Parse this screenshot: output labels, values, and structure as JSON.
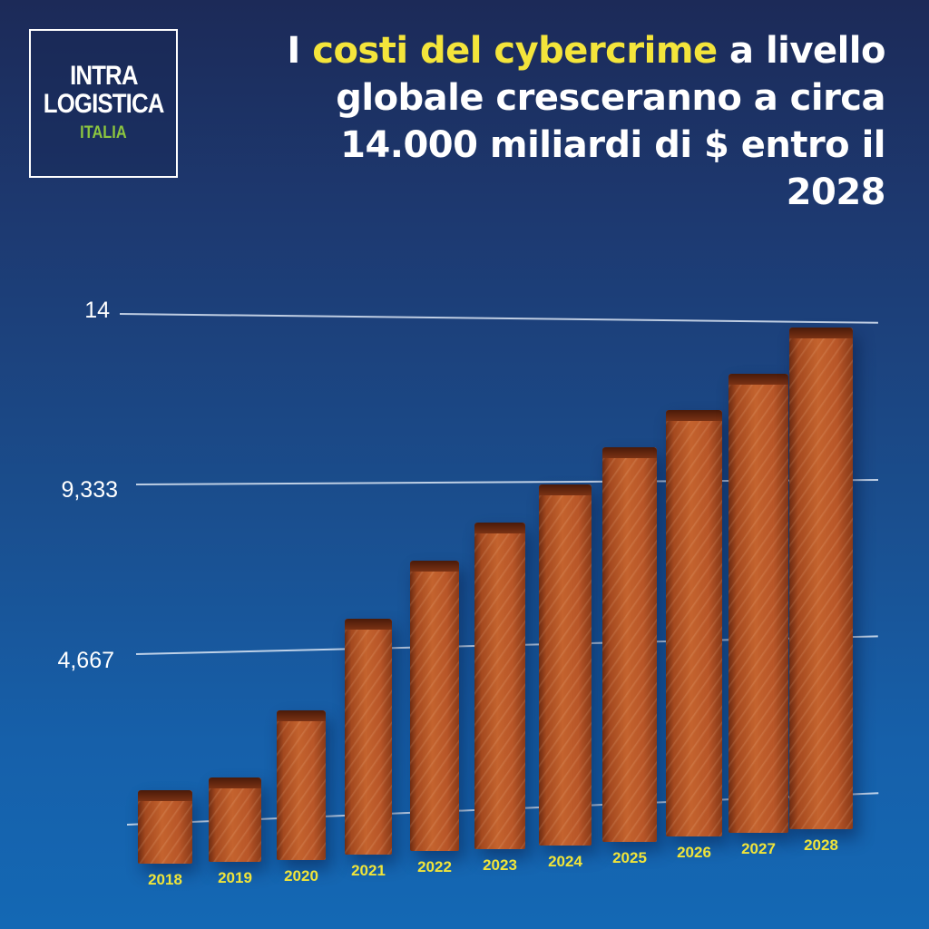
{
  "logo": {
    "line1": "INTRA",
    "line2": "LOGISTICA",
    "line3": "ITALIA",
    "colors": {
      "text": "#ffffff",
      "accent": "#8cc63f"
    }
  },
  "headline": {
    "part1": "I ",
    "highlight": "costi del cybercrime",
    "part2": " a livello",
    "line2": "globale cresceranno a circa",
    "line3": "14.000 miliardi di $ entro il 2028",
    "colors": {
      "text": "#ffffff",
      "highlight": "#f4e53b"
    }
  },
  "chart_data": {
    "type": "bar",
    "title": "I costi del cybercrime a livello globale cresceranno a circa 14.000 miliardi di $ entro il 2028",
    "xlabel": "",
    "ylabel": "",
    "categories": [
      "2018",
      "2019",
      "2020",
      "2021",
      "2022",
      "2023",
      "2024",
      "2025",
      "2026",
      "2027",
      "2028"
    ],
    "values": [
      0.86,
      1.16,
      2.95,
      5.49,
      7.08,
      8.15,
      9.22,
      10.29,
      11.36,
      12.43,
      13.82
    ],
    "units": "thousand billions USD (trillions), estimated from bar heights",
    "y_tick_labels": [
      "4,667",
      "9,333",
      "14"
    ],
    "y_tick_values": [
      4.667,
      9.333,
      14
    ],
    "ylim": [
      0,
      14
    ],
    "grid": true,
    "legend": null,
    "style": "3D copper bars",
    "colors": {
      "bar": "#b85628",
      "year_label": "#f0e43a",
      "tick_label": "#ffffff"
    }
  }
}
